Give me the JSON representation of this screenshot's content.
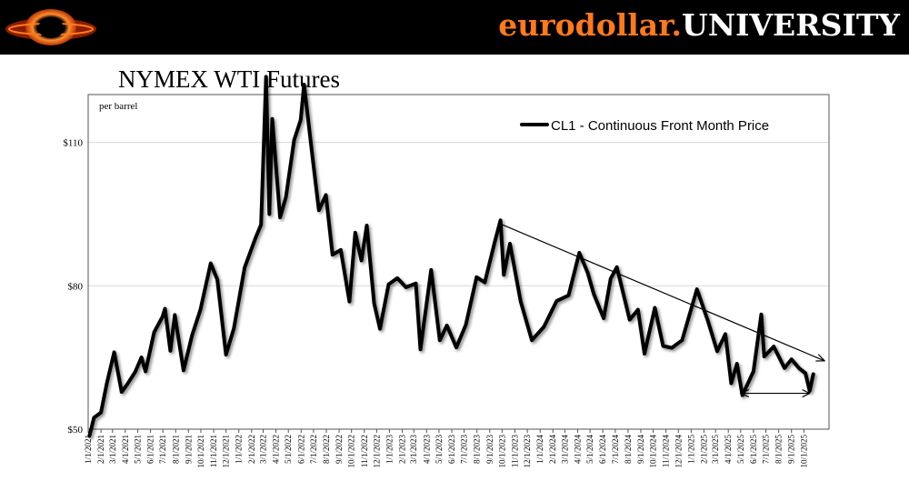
{
  "header": {
    "brand_part1": "eurodollar.",
    "brand_part2": "UNIVERSITY",
    "colors": {
      "background": "#000000",
      "brand_orange": "#ff7a1a",
      "brand_white": "#ffffff"
    }
  },
  "chart_data": {
    "type": "line",
    "title": "NYMEX WTI Futures",
    "ylabel": "per barrel",
    "ylim": [
      50,
      120
    ],
    "y_ticks": [
      {
        "value": 50,
        "label": "$50"
      },
      {
        "value": 80,
        "label": "$80"
      },
      {
        "value": 110,
        "label": "$110"
      }
    ],
    "x_tick_labels": [
      "1/1/2021",
      "2/1/2021",
      "3/1/2021",
      "4/1/2021",
      "5/1/2021",
      "6/1/2021",
      "7/1/2021",
      "8/1/2021",
      "9/1/2021",
      "10/1/2021",
      "11/1/2021",
      "12/1/2021",
      "1/1/2022",
      "2/1/2022",
      "3/1/2022",
      "4/1/2022",
      "5/1/2022",
      "6/1/2022",
      "7/1/2022",
      "8/1/2022",
      "9/1/2022",
      "10/1/2022",
      "11/1/2022",
      "12/1/2022",
      "1/1/2023",
      "2/1/2023",
      "3/1/2023",
      "4/1/2023",
      "5/1/2023",
      "6/1/2023",
      "7/1/2023",
      "8/1/2023",
      "9/1/2023",
      "10/1/2023",
      "11/1/2023",
      "12/1/2023",
      "1/1/2024",
      "2/1/2024",
      "3/1/2024",
      "4/1/2024",
      "5/1/2024",
      "6/1/2024",
      "7/1/2024",
      "8/1/2024",
      "9/1/2024",
      "10/1/2024",
      "11/1/2024",
      "12/1/2024",
      "1/1/2025",
      "2/1/2025",
      "3/1/2025",
      "4/1/2025",
      "5/1/2025",
      "6/1/2025",
      "7/1/2025",
      "8/1/2025",
      "9/1/2025",
      "10/1/2025"
    ],
    "grid": true,
    "legend": "top-right",
    "series": [
      {
        "name": "CL1 - Continuous Front Month Price",
        "color": "#000000",
        "points": [
          [
            "2021-01-04",
            48.6
          ],
          [
            "2021-01-15",
            52.4
          ],
          [
            "2021-02-01",
            53.5
          ],
          [
            "2021-02-15",
            59.5
          ],
          [
            "2021-03-05",
            66.1
          ],
          [
            "2021-03-23",
            57.8
          ],
          [
            "2021-04-05",
            59.3
          ],
          [
            "2021-04-25",
            62.0
          ],
          [
            "2021-05-10",
            65.0
          ],
          [
            "2021-05-20",
            62.1
          ],
          [
            "2021-06-10",
            70.3
          ],
          [
            "2021-06-30",
            73.5
          ],
          [
            "2021-07-06",
            75.2
          ],
          [
            "2021-07-19",
            66.4
          ],
          [
            "2021-07-30",
            73.9
          ],
          [
            "2021-08-20",
            62.3
          ],
          [
            "2021-09-10",
            69.7
          ],
          [
            "2021-09-30",
            75.0
          ],
          [
            "2021-10-25",
            84.7
          ],
          [
            "2021-11-10",
            81.3
          ],
          [
            "2021-12-01",
            65.6
          ],
          [
            "2021-12-20",
            71.1
          ],
          [
            "2022-01-15",
            83.8
          ],
          [
            "2022-02-10",
            89.9
          ],
          [
            "2022-02-24",
            92.8
          ],
          [
            "2022-03-08",
            123.7
          ],
          [
            "2022-03-16",
            95.0
          ],
          [
            "2022-03-23",
            114.9
          ],
          [
            "2022-04-11",
            94.3
          ],
          [
            "2022-04-25",
            98.5
          ],
          [
            "2022-05-15",
            110.5
          ],
          [
            "2022-05-31",
            114.7
          ],
          [
            "2022-06-08",
            122.1
          ],
          [
            "2022-06-30",
            105.8
          ],
          [
            "2022-07-14",
            95.8
          ],
          [
            "2022-07-31",
            99.0
          ],
          [
            "2022-08-16",
            86.5
          ],
          [
            "2022-09-05",
            87.5
          ],
          [
            "2022-09-26",
            76.7
          ],
          [
            "2022-10-10",
            91.1
          ],
          [
            "2022-10-25",
            85.3
          ],
          [
            "2022-11-07",
            92.6
          ],
          [
            "2022-11-25",
            76.3
          ],
          [
            "2022-12-09",
            71.0
          ],
          [
            "2022-12-30",
            80.3
          ],
          [
            "2023-01-20",
            81.6
          ],
          [
            "2023-02-10",
            79.7
          ],
          [
            "2023-03-06",
            80.5
          ],
          [
            "2023-03-17",
            66.7
          ],
          [
            "2023-04-12",
            83.3
          ],
          [
            "2023-05-03",
            68.6
          ],
          [
            "2023-05-20",
            71.7
          ],
          [
            "2023-06-12",
            67.1
          ],
          [
            "2023-07-05",
            71.8
          ],
          [
            "2023-07-31",
            81.8
          ],
          [
            "2023-08-20",
            80.7
          ],
          [
            "2023-09-12",
            88.8
          ],
          [
            "2023-09-27",
            93.7
          ],
          [
            "2023-10-05",
            82.3
          ],
          [
            "2023-10-20",
            88.8
          ],
          [
            "2023-11-15",
            76.7
          ],
          [
            "2023-12-12",
            68.6
          ],
          [
            "2024-01-10",
            71.4
          ],
          [
            "2024-02-10",
            76.8
          ],
          [
            "2024-03-10",
            78.0
          ],
          [
            "2024-04-05",
            86.9
          ],
          [
            "2024-04-25",
            82.8
          ],
          [
            "2024-05-10",
            78.3
          ],
          [
            "2024-06-03",
            73.2
          ],
          [
            "2024-06-20",
            81.5
          ],
          [
            "2024-07-05",
            83.9
          ],
          [
            "2024-08-05",
            72.9
          ],
          [
            "2024-08-25",
            75.0
          ],
          [
            "2024-09-10",
            65.8
          ],
          [
            "2024-10-05",
            75.4
          ],
          [
            "2024-10-25",
            67.4
          ],
          [
            "2024-11-15",
            67.0
          ],
          [
            "2024-12-10",
            68.6
          ],
          [
            "2025-01-15",
            79.3
          ],
          [
            "2025-02-10",
            72.8
          ],
          [
            "2025-03-05",
            66.3
          ],
          [
            "2025-03-25",
            69.9
          ],
          [
            "2025-04-08",
            59.6
          ],
          [
            "2025-04-22",
            63.7
          ],
          [
            "2025-05-05",
            57.1
          ],
          [
            "2025-06-01",
            62.1
          ],
          [
            "2025-06-20",
            74.0
          ],
          [
            "2025-06-27",
            65.2
          ],
          [
            "2025-07-20",
            67.3
          ],
          [
            "2025-08-15",
            62.8
          ],
          [
            "2025-09-01",
            64.6
          ],
          [
            "2025-09-20",
            62.7
          ],
          [
            "2025-10-05",
            61.7
          ],
          [
            "2025-10-15",
            58.0
          ],
          [
            "2025-10-24",
            61.5
          ]
        ]
      }
    ],
    "annotations": {
      "trend_arrow": {
        "from": [
          "2023-09-28",
          92.9
        ],
        "to": [
          "2025-11-20",
          64.3
        ]
      },
      "range_arrow": {
        "from": [
          "2025-10-15",
          57.5
        ],
        "to": [
          "2025-05-01",
          57.5
        ]
      }
    }
  }
}
